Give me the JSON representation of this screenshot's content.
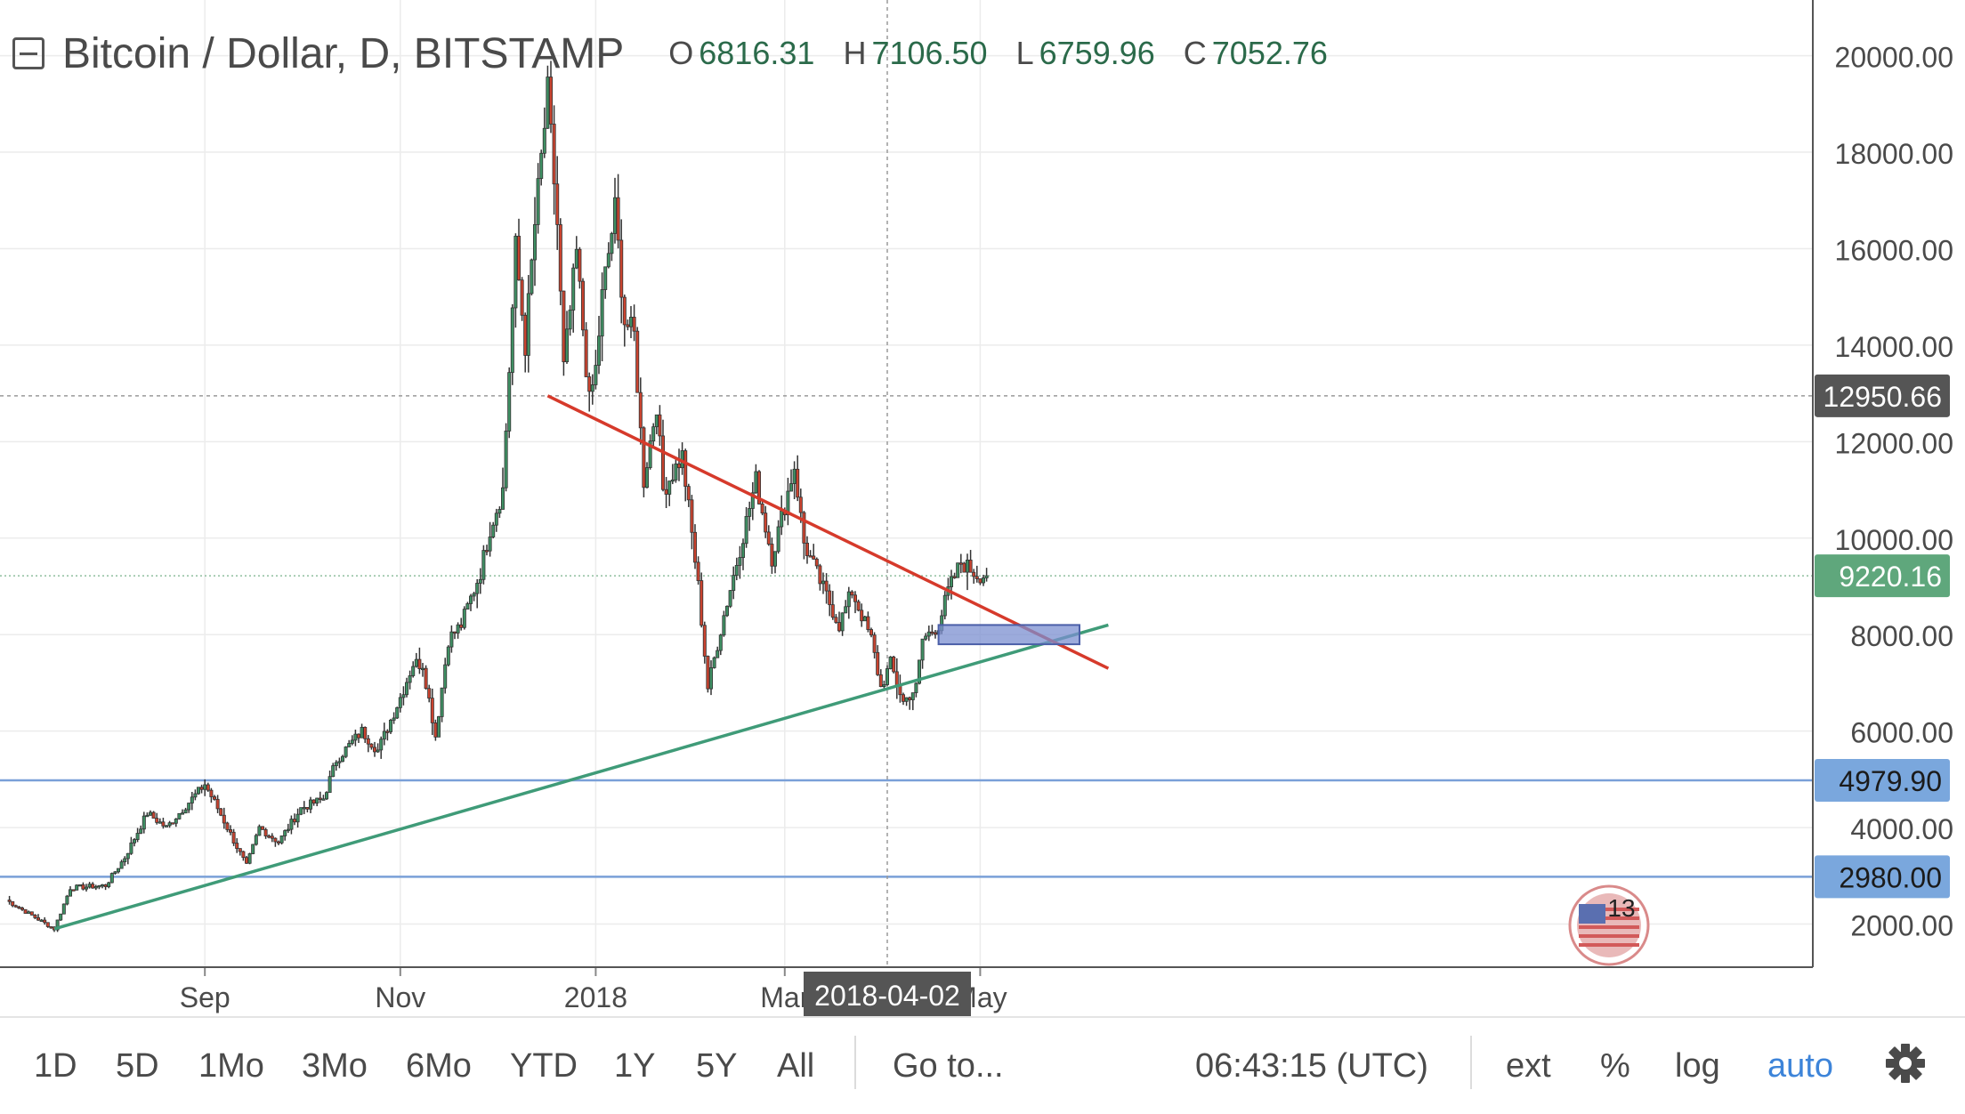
{
  "header": {
    "symbol": "Bitcoin / Dollar, D, BITSTAMP",
    "open_label": "O",
    "open": "6816.31",
    "high_label": "H",
    "high": "7106.50",
    "low_label": "L",
    "low": "6759.96",
    "close_label": "C",
    "close": "7052.76"
  },
  "toolbar": {
    "intervals": [
      "1D",
      "5D",
      "1Mo",
      "3Mo",
      "6Mo",
      "YTD",
      "1Y",
      "5Y",
      "All"
    ],
    "goto": "Go to...",
    "clock": "06:43:15 (UTC)",
    "ext": "ext",
    "percent": "%",
    "log": "log",
    "auto": "auto"
  },
  "badge": {
    "count": "13"
  },
  "colors": {
    "up": "#3f8f63",
    "down": "#c9432f",
    "trend_up": "#3f9b78",
    "trend_down": "#d63a2b",
    "level": "#7aa0d8",
    "zone": "#7b8fd0"
  },
  "chart_data": {
    "type": "candlestick",
    "title": "Bitcoin / Dollar, D, BITSTAMP",
    "ylim": [
      0,
      20000
    ],
    "y_ticks": [
      "2000.00",
      "4000.00",
      "6000.00",
      "8000.00",
      "10000.00",
      "12000.00",
      "14000.00",
      "16000.00",
      "18000.00",
      "20000.00"
    ],
    "x_ticks": [
      "Sep",
      "Nov",
      "2018",
      "Mar",
      "May"
    ],
    "x_tick_dates": [
      "2017-09-01",
      "2017-11-01",
      "2018-01-01",
      "2018-03-01",
      "2018-05-01"
    ],
    "price_labels": [
      {
        "text": "12950.66",
        "value": 12950.66,
        "style": "dark"
      },
      {
        "text": "9220.16",
        "value": 9220.16,
        "style": "green"
      },
      {
        "text": "4979.90",
        "value": 4979.9,
        "style": "blue"
      },
      {
        "text": "2980.00",
        "value": 2980.0,
        "style": "blue"
      }
    ],
    "crosshair": {
      "date": "2018-04-02",
      "label": "2018-04-02",
      "price": 12950.66
    },
    "horizontal_levels": [
      4979.9,
      2980.0
    ],
    "trendlines": [
      {
        "name": "support",
        "from": [
          "2017-07-16",
          1900
        ],
        "to": [
          "2018-06-10",
          8200
        ]
      },
      {
        "name": "resistance",
        "from": [
          "2017-12-17",
          12950
        ],
        "to": [
          "2018-06-10",
          7300
        ]
      }
    ],
    "zone": {
      "from": "2018-04-18",
      "to": "2018-06-01",
      "low": 7800,
      "high": 8200
    },
    "key_points": [
      [
        "2017-07-01",
        2500
      ],
      [
        "2017-07-16",
        1900
      ],
      [
        "2017-07-21",
        2750
      ],
      [
        "2017-08-01",
        2800
      ],
      [
        "2017-08-07",
        3380
      ],
      [
        "2017-08-14",
        4300
      ],
      [
        "2017-08-20",
        4000
      ],
      [
        "2017-09-01",
        4900
      ],
      [
        "2017-09-05",
        4400
      ],
      [
        "2017-09-14",
        3200
      ],
      [
        "2017-09-18",
        4000
      ],
      [
        "2017-09-24",
        3700
      ],
      [
        "2017-10-01",
        4400
      ],
      [
        "2017-10-08",
        4600
      ],
      [
        "2017-10-12",
        5400
      ],
      [
        "2017-10-20",
        6000
      ],
      [
        "2017-10-25",
        5600
      ],
      [
        "2017-11-01",
        6700
      ],
      [
        "2017-11-05",
        7400
      ],
      [
        "2017-11-08",
        7400
      ],
      [
        "2017-11-12",
        5900
      ],
      [
        "2017-11-16",
        7900
      ],
      [
        "2017-11-20",
        8200
      ],
      [
        "2017-11-26",
        9300
      ],
      [
        "2017-11-29",
        10200
      ],
      [
        "2017-12-03",
        11000
      ],
      [
        "2017-12-07",
        16000
      ],
      [
        "2017-12-10",
        14000
      ],
      [
        "2017-12-13",
        16500
      ],
      [
        "2017-12-17",
        19200
      ],
      [
        "2017-12-20",
        16500
      ],
      [
        "2017-12-22",
        13500
      ],
      [
        "2017-12-26",
        15900
      ],
      [
        "2017-12-30",
        12800
      ],
      [
        "2018-01-01",
        13500
      ],
      [
        "2018-01-03",
        15000
      ],
      [
        "2018-01-07",
        16800
      ],
      [
        "2018-01-10",
        14500
      ],
      [
        "2018-01-13",
        14200
      ],
      [
        "2018-01-16",
        11200
      ],
      [
        "2018-01-20",
        12800
      ],
      [
        "2018-01-22",
        11000
      ],
      [
        "2018-01-28",
        11700
      ],
      [
        "2018-02-02",
        9000
      ],
      [
        "2018-02-05",
        6900
      ],
      [
        "2018-02-10",
        8400
      ],
      [
        "2018-02-14",
        9500
      ],
      [
        "2018-02-20",
        11200
      ],
      [
        "2018-02-25",
        9600
      ],
      [
        "2018-03-04",
        11500
      ],
      [
        "2018-03-07",
        9900
      ],
      [
        "2018-03-12",
        9100
      ],
      [
        "2018-03-18",
        8200
      ],
      [
        "2018-03-22",
        8900
      ],
      [
        "2018-03-28",
        7900
      ],
      [
        "2018-03-31",
        6900
      ],
      [
        "2018-04-03",
        7400
      ],
      [
        "2018-04-07",
        6600
      ],
      [
        "2018-04-11",
        6900
      ],
      [
        "2018-04-13",
        7900
      ],
      [
        "2018-04-18",
        8200
      ],
      [
        "2018-04-21",
        8900
      ],
      [
        "2018-04-25",
        9500
      ],
      [
        "2018-04-30",
        9250
      ],
      [
        "2018-05-03",
        9220
      ]
    ]
  }
}
